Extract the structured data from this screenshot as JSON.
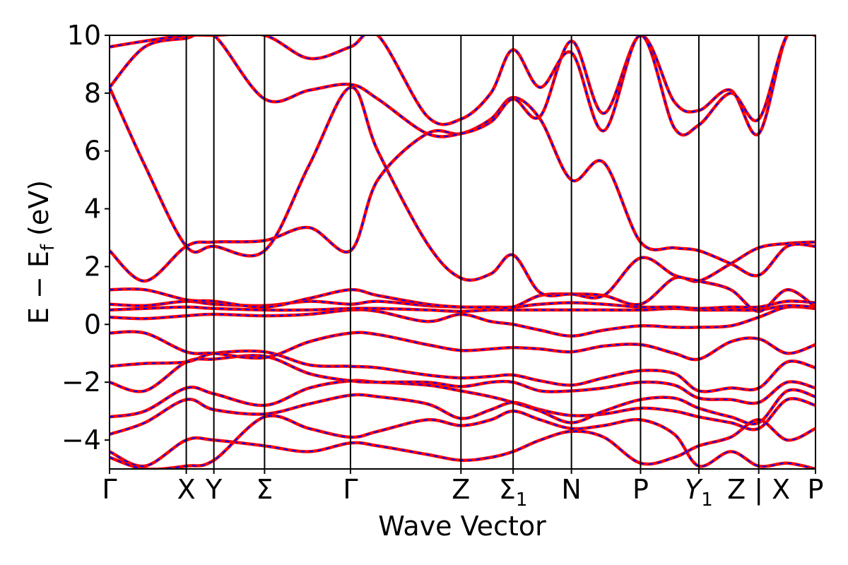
{
  "chart_data": {
    "type": "line",
    "xlabel": "Wave Vector",
    "ylabel": "E − E_f (eV)",
    "ylim": [
      -5,
      10
    ],
    "yticks": [
      -4,
      -2,
      0,
      2,
      4,
      6,
      8,
      10
    ],
    "ytick_labels": [
      "−4",
      "−2",
      "0",
      "2",
      "4",
      "6",
      "8",
      "10"
    ],
    "x_domain": [
      0,
      1
    ],
    "kpoints": [
      {
        "label": "Γ",
        "sub": "",
        "x": 0.0
      },
      {
        "label": "X",
        "sub": "",
        "x": 0.1087
      },
      {
        "label": "Y",
        "sub": "",
        "x": 0.1478
      },
      {
        "label": "Σ",
        "sub": "",
        "x": 0.2196
      },
      {
        "label": "Γ",
        "sub": "",
        "x": 0.3413
      },
      {
        "label": "Z",
        "sub": "",
        "x": 0.4978
      },
      {
        "label": "Σ",
        "sub": "1",
        "x": 0.5717
      },
      {
        "label": "N",
        "sub": "",
        "x": 0.6543
      },
      {
        "label": "P",
        "sub": "",
        "x": 0.7522
      },
      {
        "label": "Y",
        "sub": "1",
        "x": 0.8348
      },
      {
        "label": "Z | X",
        "sub": "",
        "x": 0.9196
      },
      {
        "label": "P",
        "sub": "",
        "x": 1.0
      }
    ],
    "grid": false,
    "legend": "none",
    "series_style": {
      "outer_color": "#ff0000",
      "inner_dash_color": "#0000ff"
    },
    "bands": [
      {
        "x": [
          0,
          0.05,
          0.1087,
          0.1478,
          0.2196,
          0.2826,
          0.3413,
          0.38,
          0.45,
          0.4978,
          0.54,
          0.5717,
          0.61,
          0.6543,
          0.7,
          0.7522,
          0.8,
          0.8348,
          0.88,
          0.9196,
          0.96,
          1.0
        ],
        "y": [
          -3.8,
          -3.4,
          -2.6,
          -2.95,
          -3.1,
          -2.75,
          -2.45,
          -2.5,
          -2.75,
          -3.25,
          -2.95,
          -2.7,
          -2.95,
          -3.15,
          -3.1,
          -2.9,
          -3.0,
          -3.2,
          -3.4,
          -3.6,
          -2.6,
          -2.8
        ]
      },
      {
        "x": [
          0,
          0.05,
          0.1087,
          0.1478,
          0.2196,
          0.2826,
          0.3413,
          0.38,
          0.45,
          0.4978,
          0.54,
          0.5717,
          0.61,
          0.6543,
          0.7,
          0.7522,
          0.8,
          0.8348,
          0.88,
          0.9196,
          0.96,
          1.0
        ],
        "y": [
          -3.2,
          -3.0,
          -2.2,
          -2.4,
          -2.8,
          -2.2,
          -1.95,
          -2.0,
          -2.1,
          -2.3,
          -2.5,
          -2.7,
          -3.0,
          -3.4,
          -3.0,
          -2.6,
          -2.55,
          -2.9,
          -3.2,
          -3.4,
          -2.3,
          -2.5
        ]
      },
      {
        "x": [
          0,
          0.05,
          0.1087,
          0.1478,
          0.2196,
          0.2826,
          0.3413,
          0.38,
          0.45,
          0.4978,
          0.54,
          0.5717,
          0.61,
          0.6543,
          0.7,
          0.7522,
          0.8,
          0.8348,
          0.88,
          0.9196,
          0.96,
          1.0
        ],
        "y": [
          -2.0,
          -2.3,
          -1.3,
          -1.2,
          -1.1,
          -1.7,
          -1.95,
          -2.0,
          -2.0,
          -2.15,
          -2.0,
          -2.0,
          -2.3,
          -2.3,
          -2.2,
          -2.0,
          -2.1,
          -2.55,
          -2.6,
          -2.7,
          -2.0,
          -2.2
        ]
      },
      {
        "x": [
          0,
          0.05,
          0.1087,
          0.1478,
          0.2196,
          0.2826,
          0.3413,
          0.38,
          0.45,
          0.4978,
          0.54,
          0.5717,
          0.61,
          0.6543,
          0.7,
          0.7522,
          0.8,
          0.8348,
          0.88,
          0.9196,
          0.96,
          1.0
        ],
        "y": [
          -1.45,
          -1.35,
          -1.3,
          -1.0,
          -0.95,
          -1.4,
          -1.45,
          -1.5,
          -1.75,
          -1.85,
          -1.8,
          -1.75,
          -1.95,
          -2.1,
          -1.85,
          -1.6,
          -1.7,
          -2.3,
          -2.2,
          -2.2,
          -1.3,
          -1.5
        ]
      },
      {
        "x": [
          0,
          0.05,
          0.1087,
          0.1478,
          0.2196,
          0.2826,
          0.3413,
          0.38,
          0.45,
          0.4978,
          0.54,
          0.5717,
          0.61,
          0.6543,
          0.7,
          0.7522,
          0.8,
          0.8348,
          0.88,
          0.9196,
          0.96,
          1.0
        ],
        "y": [
          -0.3,
          -0.3,
          -0.95,
          -1.0,
          -1.15,
          -0.6,
          -0.3,
          -0.35,
          -0.7,
          -0.9,
          -0.85,
          -0.8,
          -0.85,
          -0.95,
          -0.75,
          -0.7,
          -1.0,
          -1.2,
          -0.6,
          -0.5,
          -1.0,
          -0.7
        ]
      },
      {
        "x": [
          0,
          0.05,
          0.1087,
          0.1478,
          0.2196,
          0.2826,
          0.3413,
          0.38,
          0.45,
          0.4978,
          0.54,
          0.5717,
          0.61,
          0.6543,
          0.7,
          0.7522,
          0.8,
          0.8348,
          0.88,
          0.9196,
          0.96,
          1.0
        ],
        "y": [
          0.25,
          0.2,
          0.3,
          0.35,
          0.3,
          0.35,
          0.5,
          0.45,
          0.1,
          0.35,
          0.1,
          0.0,
          -0.2,
          -0.4,
          -0.2,
          -0.05,
          -0.1,
          -0.1,
          -0.05,
          0.25,
          0.6,
          0.55
        ]
      },
      {
        "x": [
          0,
          0.05,
          0.1087,
          0.1478,
          0.2196,
          0.2826,
          0.3413,
          0.38,
          0.45,
          0.4978,
          0.54,
          0.5717,
          0.61,
          0.6543,
          0.7,
          0.7522,
          0.8,
          0.8348,
          0.88,
          0.9196,
          0.96,
          1.0
        ],
        "y": [
          0.5,
          0.55,
          0.6,
          0.55,
          0.5,
          0.5,
          0.55,
          0.55,
          0.5,
          0.45,
          0.5,
          0.5,
          0.5,
          0.5,
          0.5,
          0.5,
          0.55,
          0.5,
          0.5,
          0.5,
          0.65,
          0.6
        ]
      },
      {
        "x": [
          0,
          0.05,
          0.1087,
          0.1478,
          0.2196,
          0.2826,
          0.3413,
          0.38,
          0.45,
          0.4978,
          0.54,
          0.5717,
          0.61,
          0.6543,
          0.7,
          0.7522,
          0.8,
          0.8348,
          0.88,
          0.9196,
          0.96,
          1.0
        ],
        "y": [
          0.7,
          0.65,
          0.8,
          0.7,
          0.65,
          0.8,
          0.7,
          0.8,
          0.65,
          0.6,
          0.6,
          0.6,
          0.7,
          0.75,
          0.7,
          0.6,
          0.6,
          0.55,
          0.6,
          0.6,
          0.8,
          0.75
        ]
      },
      {
        "x": [
          0,
          0.05,
          0.1087,
          0.1478,
          0.2196,
          0.2826,
          0.3413,
          0.38,
          0.45,
          0.4978,
          0.54,
          0.5717,
          0.61,
          0.6543,
          0.7,
          0.7522,
          0.8,
          0.8348,
          0.88,
          0.9196,
          0.96,
          1.0
        ],
        "y": [
          1.2,
          1.2,
          0.85,
          0.8,
          0.6,
          0.9,
          1.2,
          1.0,
          0.7,
          0.6,
          0.6,
          0.6,
          1.0,
          1.05,
          1.0,
          0.7,
          1.6,
          1.5,
          2.1,
          2.65,
          2.8,
          2.85
        ]
      },
      {
        "x": [
          0,
          0.05,
          0.1087,
          0.1478,
          0.2196,
          0.2826,
          0.3413,
          0.38,
          0.45,
          0.4978,
          0.54,
          0.5717,
          0.61,
          0.6543,
          0.7,
          0.7522,
          0.8,
          0.8348,
          0.88,
          0.9196,
          0.96,
          1.0
        ],
        "y": [
          2.55,
          1.5,
          2.7,
          2.85,
          2.9,
          3.35,
          2.55,
          5.0,
          6.6,
          6.6,
          7.1,
          7.85,
          7.1,
          5.0,
          5.6,
          2.85,
          2.65,
          2.55,
          2.1,
          1.7,
          2.7,
          2.7
        ]
      },
      {
        "x": [
          0,
          0.05,
          0.1087,
          0.1478,
          0.2196,
          0.2826,
          0.3413,
          0.38,
          0.45,
          0.4978,
          0.54,
          0.5717,
          0.61,
          0.6543,
          0.7,
          0.7522,
          0.8,
          0.8348,
          0.88,
          0.9196,
          0.96,
          1.0
        ],
        "y": [
          8.2,
          5.5,
          2.7,
          2.7,
          2.55,
          5.5,
          8.2,
          6.0,
          2.8,
          1.6,
          1.75,
          2.4,
          1.1,
          1.05,
          1.0,
          2.3,
          1.7,
          1.5,
          1.2,
          0.45,
          1.2,
          0.6
        ]
      },
      {
        "x": [
          0,
          0.05,
          0.1087,
          0.1478,
          0.2196,
          0.2826,
          0.3413,
          0.38,
          0.45,
          0.4978,
          0.54,
          0.5717,
          0.61,
          0.6543,
          0.7,
          0.7522,
          0.8,
          0.8348,
          0.88,
          0.9196,
          0.96,
          1.0
        ],
        "y": [
          8.2,
          9.6,
          9.9,
          10.0,
          7.8,
          8.1,
          8.3,
          7.8,
          6.6,
          6.6,
          7.0,
          7.8,
          7.2,
          9.8,
          7.3,
          10.0,
          7.7,
          7.4,
          8.1,
          6.6,
          10.0,
          10.0
        ]
      },
      {
        "x": [
          0,
          0.05,
          0.1087,
          0.1478,
          0.2196,
          0.2826,
          0.3413,
          0.38,
          0.45,
          0.4978,
          0.54,
          0.5717,
          0.61,
          0.6543,
          0.7,
          0.7522,
          0.8,
          0.8348,
          0.88,
          0.9196,
          0.96,
          1.0
        ],
        "y": [
          9.6,
          9.8,
          10.0,
          10.0,
          10.0,
          9.2,
          9.6,
          10.0,
          7.2,
          7.1,
          8.0,
          9.5,
          8.2,
          9.4,
          6.7,
          10.0,
          6.8,
          6.9,
          8.0,
          7.1,
          10.0,
          10.0
        ]
      },
      {
        "x": [
          0,
          0.05,
          0.1087,
          0.1478,
          0.2196,
          0.2826,
          0.3413,
          0.38,
          0.45,
          0.4978,
          0.54,
          0.5717,
          0.61,
          0.6543,
          0.7,
          0.7522,
          0.8,
          0.8348,
          0.88,
          0.9196,
          0.96,
          1.0
        ],
        "y": [
          -4.4,
          -4.9,
          -4.0,
          -4.0,
          -4.2,
          -4.4,
          -4.1,
          -4.2,
          -4.5,
          -4.7,
          -4.6,
          -4.4,
          -4.0,
          -3.7,
          -3.9,
          -4.8,
          -4.6,
          -4.2,
          -3.9,
          -3.3,
          -4.0,
          -3.6
        ]
      },
      {
        "x": [
          0,
          0.05,
          0.1087,
          0.1478,
          0.2196,
          0.2826,
          0.3413,
          0.38,
          0.45,
          0.4978,
          0.54,
          0.5717,
          0.61,
          0.6543,
          0.7,
          0.7522,
          0.8,
          0.8348,
          0.88,
          0.9196,
          0.96,
          1.0
        ],
        "y": [
          -4.6,
          -5.0,
          -4.9,
          -4.7,
          -3.2,
          -3.6,
          -3.9,
          -3.7,
          -3.3,
          -3.5,
          -3.3,
          -3.0,
          -3.3,
          -3.6,
          -3.5,
          -3.3,
          -3.8,
          -4.9,
          -4.4,
          -4.9,
          -4.8,
          -5.0
        ]
      }
    ]
  }
}
